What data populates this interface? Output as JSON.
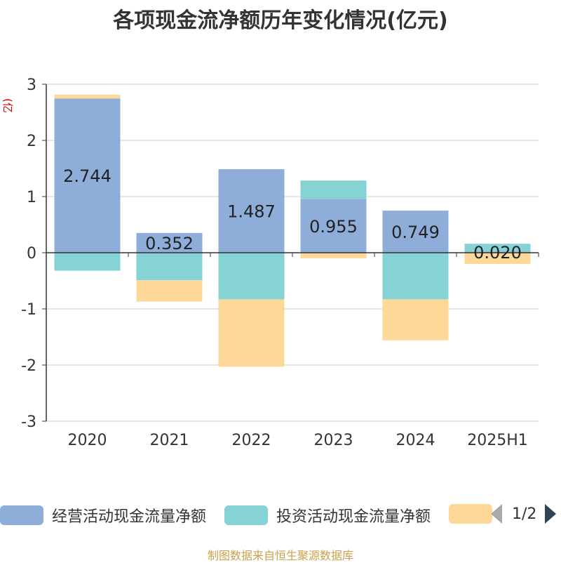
{
  "title": "各项现金流净额历年变化情况(亿元)",
  "unit_label": "(亿元)",
  "source": "制图数据来自恒生聚源数据库",
  "legend": {
    "pager_text": "1/2"
  },
  "colors": {
    "operating": "#8eadd9",
    "investing": "#86d3d6",
    "financing": "#fdd898",
    "axis": "#333333",
    "grid": "#cccccc"
  },
  "chart_data": {
    "type": "bar",
    "stacked": true,
    "categories": [
      "2020",
      "2021",
      "2022",
      "2023",
      "2024",
      "2025H1"
    ],
    "ylim": [
      -3,
      3
    ],
    "yticks": [
      3,
      2,
      1,
      0,
      -1,
      -2,
      -3
    ],
    "series": [
      {
        "name": "经营活动现金流量净额",
        "values": [
          2.744,
          0.352,
          1.487,
          0.955,
          0.749,
          0.02
        ],
        "labels": [
          "2.744",
          "0.352",
          "1.487",
          "0.955",
          "0.749",
          "0.020"
        ]
      },
      {
        "name": "投资活动现金流量净额",
        "values": [
          -0.32,
          -0.49,
          -0.83,
          0.33,
          -0.83,
          0.14
        ]
      },
      {
        "name": "",
        "values": [
          0.07,
          -0.38,
          -1.2,
          -0.1,
          -0.73,
          -0.2
        ]
      }
    ]
  }
}
